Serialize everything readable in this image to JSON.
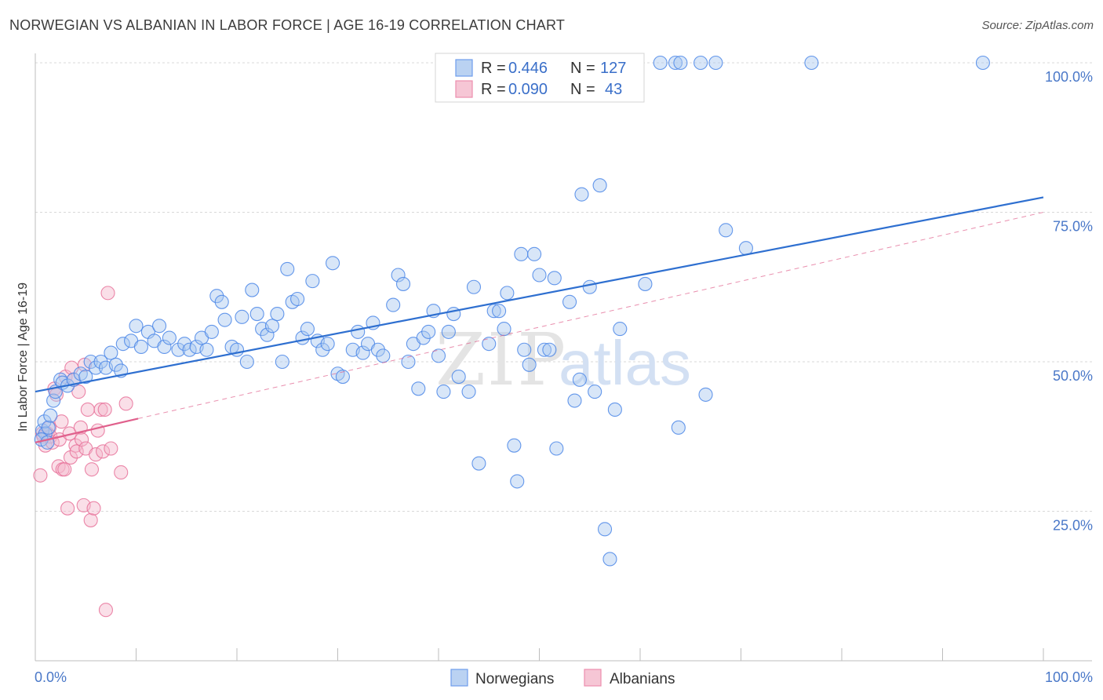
{
  "title": "NORWEGIAN VS ALBANIAN IN LABOR FORCE | AGE 16-19 CORRELATION CHART",
  "source": "Source: ZipAtlas.com",
  "watermark": "ZIPatlas",
  "colors": {
    "blue": "#4a86e8",
    "blue_fill": "#a9c7f0",
    "blue_line": "#2e6fd0",
    "pink": "#e8729a",
    "pink_fill": "#f5b8cb",
    "pink_line": "#e0608c",
    "tick_text": "#4a78c8",
    "grid": "#d8d8d8"
  },
  "legend": {
    "rows": [
      {
        "r_label": "R =",
        "r_value": "0.446",
        "n_label": "N =",
        "n_value": "127"
      },
      {
        "r_label": "R =",
        "r_value": "0.090",
        "n_label": "N =",
        "n_value": "43"
      }
    ]
  },
  "bottom_legend": [
    "Norwegians",
    "Albanians"
  ],
  "chart_data": {
    "type": "scatter",
    "title": "NORWEGIAN VS ALBANIAN IN LABOR FORCE | AGE 16-19 CORRELATION CHART",
    "xlabel": "",
    "ylabel": "In Labor Force | Age 16-19",
    "xlim": [
      0,
      100
    ],
    "ylim": [
      0,
      103
    ],
    "x_tick_labels": [
      "0.0%",
      "100.0%"
    ],
    "y_ticks": [
      25,
      50,
      75,
      100
    ],
    "y_tick_labels": [
      "25.0%",
      "50.0%",
      "75.0%",
      "100.0%"
    ],
    "series": [
      {
        "name": "Norwegians",
        "R": 0.446,
        "N": 127,
        "trend": {
          "x": [
            0,
            100
          ],
          "y": [
            45.0,
            77.5
          ]
        },
        "points": [
          [
            0.7,
            38.5
          ],
          [
            0.9,
            40
          ],
          [
            1,
            38
          ],
          [
            1.3,
            39
          ],
          [
            1.5,
            41
          ],
          [
            1.8,
            43.5
          ],
          [
            2,
            45
          ],
          [
            2.5,
            47
          ],
          [
            2.7,
            46.5
          ],
          [
            3.2,
            46
          ],
          [
            3.8,
            47
          ],
          [
            4.5,
            48
          ],
          [
            5,
            47.5
          ],
          [
            5.5,
            50
          ],
          [
            6,
            49
          ],
          [
            6.5,
            50
          ],
          [
            7,
            49
          ],
          [
            7.5,
            51.5
          ],
          [
            8,
            49.5
          ],
          [
            8.5,
            48.5
          ],
          [
            8.7,
            53
          ],
          [
            9.5,
            53.5
          ],
          [
            10,
            56
          ],
          [
            10.5,
            52.5
          ],
          [
            11.2,
            55
          ],
          [
            11.8,
            53.5
          ],
          [
            12.3,
            56
          ],
          [
            12.8,
            52.5
          ],
          [
            13.3,
            54
          ],
          [
            14.2,
            52
          ],
          [
            14.8,
            53
          ],
          [
            15.3,
            52
          ],
          [
            16,
            52.5
          ],
          [
            16.5,
            54
          ],
          [
            17,
            52
          ],
          [
            17.5,
            55
          ],
          [
            18,
            61
          ],
          [
            18.5,
            60
          ],
          [
            18.8,
            57
          ],
          [
            19.5,
            52.5
          ],
          [
            20,
            52
          ],
          [
            20.5,
            57.5
          ],
          [
            21,
            50
          ],
          [
            21.5,
            62
          ],
          [
            22,
            58
          ],
          [
            22.5,
            55.5
          ],
          [
            23,
            54.5
          ],
          [
            23.5,
            56
          ],
          [
            24,
            58
          ],
          [
            24.5,
            50
          ],
          [
            25,
            65.5
          ],
          [
            25.5,
            60
          ],
          [
            26,
            60.5
          ],
          [
            26.5,
            54
          ],
          [
            27,
            55.5
          ],
          [
            27.5,
            63.5
          ],
          [
            28,
            53.5
          ],
          [
            28.5,
            52
          ],
          [
            29,
            53
          ],
          [
            29.5,
            66.5
          ],
          [
            30,
            48
          ],
          [
            30.5,
            47.5
          ],
          [
            31.5,
            52
          ],
          [
            32,
            55
          ],
          [
            32.5,
            51.5
          ],
          [
            33,
            53
          ],
          [
            33.5,
            56.5
          ],
          [
            34,
            52
          ],
          [
            34.5,
            51
          ],
          [
            35.5,
            59.5
          ],
          [
            36,
            64.5
          ],
          [
            36.5,
            63
          ],
          [
            37,
            50
          ],
          [
            37.5,
            53
          ],
          [
            38,
            45.5
          ],
          [
            38.5,
            54
          ],
          [
            39,
            55
          ],
          [
            39.5,
            58.5
          ],
          [
            40,
            51
          ],
          [
            40.5,
            45
          ],
          [
            41,
            55
          ],
          [
            41.5,
            58
          ],
          [
            42,
            47.5
          ],
          [
            43,
            45
          ],
          [
            43.5,
            62.5
          ],
          [
            44,
            33
          ],
          [
            45,
            53
          ],
          [
            45.5,
            58.5
          ],
          [
            46,
            58.5
          ],
          [
            46.5,
            55.5
          ],
          [
            46.8,
            61.5
          ],
          [
            47.5,
            36
          ],
          [
            47.8,
            30
          ],
          [
            48.2,
            68
          ],
          [
            48.5,
            52
          ],
          [
            49,
            49.5
          ],
          [
            49.5,
            68
          ],
          [
            50,
            64.5
          ],
          [
            50.5,
            52
          ],
          [
            51,
            52
          ],
          [
            51.5,
            64
          ],
          [
            51.7,
            35.5
          ],
          [
            53,
            60
          ],
          [
            53.5,
            43.5
          ],
          [
            54,
            47
          ],
          [
            54.2,
            78
          ],
          [
            55,
            62.5
          ],
          [
            55.5,
            45
          ],
          [
            56,
            79.5
          ],
          [
            56.5,
            22
          ],
          [
            57,
            17
          ],
          [
            57.5,
            42
          ],
          [
            58,
            55.5
          ],
          [
            60.5,
            63
          ],
          [
            62,
            100
          ],
          [
            63.5,
            100
          ],
          [
            64,
            100
          ],
          [
            63.8,
            39
          ],
          [
            66,
            100
          ],
          [
            66.5,
            44.5
          ],
          [
            67.5,
            100
          ],
          [
            68.5,
            72
          ],
          [
            70.5,
            69
          ],
          [
            77,
            100
          ],
          [
            94,
            100
          ],
          [
            0.6,
            37
          ],
          [
            1.2,
            36.5
          ]
        ]
      },
      {
        "name": "Albanians",
        "R": 0.09,
        "N": 43,
        "trend": {
          "x": [
            0,
            10.2
          ],
          "y": [
            36.5,
            40.5
          ]
        },
        "trend_dashed": {
          "x": [
            10.2,
            100
          ],
          "y": [
            40.5,
            75.0
          ]
        },
        "points": [
          [
            0.5,
            31
          ],
          [
            0.7,
            38
          ],
          [
            0.8,
            37.5
          ],
          [
            1,
            36
          ],
          [
            1.2,
            38
          ],
          [
            1.4,
            39
          ],
          [
            1.5,
            37.5
          ],
          [
            1.7,
            36.5
          ],
          [
            1.9,
            45.5
          ],
          [
            2.1,
            44.5
          ],
          [
            2.3,
            32.5
          ],
          [
            2.4,
            37
          ],
          [
            2.6,
            40
          ],
          [
            2.7,
            32
          ],
          [
            2.9,
            32
          ],
          [
            3,
            47.5
          ],
          [
            3.2,
            25.5
          ],
          [
            3.4,
            38
          ],
          [
            3.5,
            34
          ],
          [
            3.6,
            49
          ],
          [
            3.8,
            47
          ],
          [
            4,
            36
          ],
          [
            4.1,
            35
          ],
          [
            4.3,
            45
          ],
          [
            4.5,
            39
          ],
          [
            4.6,
            37
          ],
          [
            4.8,
            26
          ],
          [
            4.9,
            49.5
          ],
          [
            5,
            35.5
          ],
          [
            5.2,
            42
          ],
          [
            5.5,
            23.5
          ],
          [
            5.6,
            32
          ],
          [
            5.8,
            25.5
          ],
          [
            6,
            34.5
          ],
          [
            6.2,
            38.5
          ],
          [
            6.5,
            42
          ],
          [
            6.7,
            35
          ],
          [
            6.9,
            42
          ],
          [
            7,
            8.5
          ],
          [
            7.2,
            61.5
          ],
          [
            7.5,
            35.5
          ],
          [
            8.5,
            31.5
          ],
          [
            9,
            43
          ]
        ]
      }
    ]
  }
}
